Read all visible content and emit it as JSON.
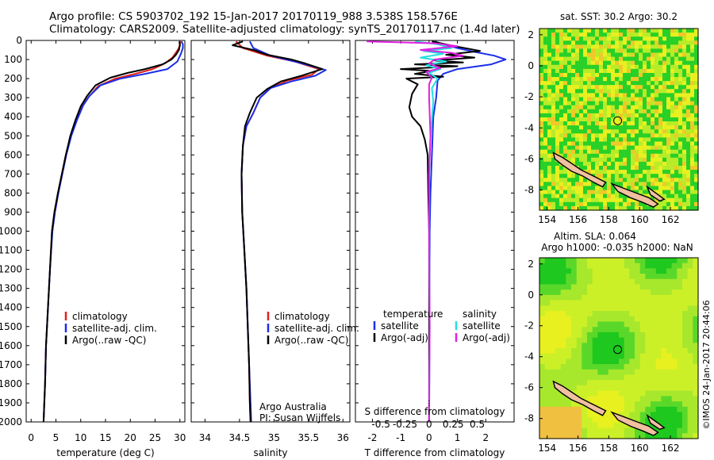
{
  "header": {
    "title_line1": "Argo profile: CS 5903702_192 15-Jan-2017 20170119_988 3.538S 158.576E",
    "title_line2": "Climatology: CARS2009. Satellite-adjusted climatology: synTS_20170117.nc (1.4d later)"
  },
  "colors": {
    "climatology": "#e0201a",
    "satellite": "#1a2ee8",
    "argo": "#000000",
    "satellite_diff": "#22e0e0",
    "argo_sal_diff": "#e020e0",
    "map_green": "#2ed82e",
    "map_yellow": "#e8f020",
    "land": "#f0c0a0"
  },
  "chart_data": [
    {
      "id": "temperature_panel",
      "type": "line",
      "xlabel": "temperature (deg C)",
      "ylabel": "",
      "xlim": [
        -1,
        31
      ],
      "ylim": [
        2000,
        0
      ],
      "xticks": [
        0,
        5,
        10,
        15,
        20,
        25,
        30
      ],
      "yticks": [
        0,
        100,
        200,
        300,
        400,
        500,
        600,
        700,
        800,
        900,
        1000,
        1100,
        1200,
        1300,
        1400,
        1500,
        1600,
        1700,
        1800,
        1900,
        2000
      ],
      "legend": [
        "climatology",
        "satellite-adj. clim.",
        "Argo(..raw -QC)"
      ],
      "legend_position": "lower-left",
      "series": [
        {
          "name": "climatology",
          "color_key": "climatology",
          "points": [
            [
              30.1,
              5
            ],
            [
              30.0,
              20
            ],
            [
              29.8,
              40
            ],
            [
              29.3,
              60
            ],
            [
              28.5,
              90
            ],
            [
              27,
              120
            ],
            [
              24.5,
              150
            ],
            [
              21,
              175
            ],
            [
              17,
              200
            ],
            [
              13.5,
              240
            ],
            [
              11.5,
              300
            ],
            [
              10.2,
              350
            ],
            [
              9.0,
              420
            ],
            [
              8.0,
              500
            ],
            [
              7.0,
              600
            ],
            [
              6.2,
              700
            ],
            [
              5.4,
              800
            ],
            [
              4.7,
              900
            ],
            [
              4.2,
              1000
            ],
            [
              3.8,
              1200
            ],
            [
              3.4,
              1400
            ],
            [
              3.0,
              1600
            ],
            [
              2.8,
              1800
            ],
            [
              2.5,
              2000
            ]
          ]
        },
        {
          "name": "satellite-adj. clim.",
          "color_key": "satellite",
          "points": [
            [
              30.3,
              5
            ],
            [
              30.6,
              20
            ],
            [
              30.6,
              40
            ],
            [
              30.2,
              70
            ],
            [
              29.5,
              110
            ],
            [
              27.5,
              150
            ],
            [
              23,
              175
            ],
            [
              18,
              200
            ],
            [
              14,
              235
            ],
            [
              11.8,
              290
            ],
            [
              10.5,
              340
            ],
            [
              9.2,
              420
            ],
            [
              8.1,
              500
            ],
            [
              7.1,
              600
            ],
            [
              6.3,
              700
            ],
            [
              5.5,
              800
            ],
            [
              4.8,
              900
            ],
            [
              4.3,
              1000
            ],
            [
              3.8,
              1200
            ],
            [
              3.4,
              1400
            ],
            [
              3.0,
              1600
            ],
            [
              2.8,
              1800
            ],
            [
              2.5,
              2000
            ]
          ]
        },
        {
          "name": "Argo(..raw -QC)",
          "color_key": "argo",
          "points": [
            [
              29.9,
              5
            ],
            [
              30.0,
              25
            ],
            [
              29.8,
              50
            ],
            [
              29.2,
              75
            ],
            [
              28.3,
              100
            ],
            [
              26.5,
              125
            ],
            [
              23,
              150
            ],
            [
              19.5,
              170
            ],
            [
              16,
              195
            ],
            [
              13,
              235
            ],
            [
              11.3,
              290
            ],
            [
              10.0,
              345
            ],
            [
              8.9,
              420
            ],
            [
              7.9,
              500
            ],
            [
              7.0,
              600
            ],
            [
              6.2,
              700
            ],
            [
              5.4,
              800
            ],
            [
              4.7,
              900
            ],
            [
              4.2,
              1000
            ],
            [
              3.8,
              1200
            ],
            [
              3.4,
              1400
            ],
            [
              3.0,
              1600
            ],
            [
              2.8,
              1800
            ],
            [
              2.5,
              2000
            ]
          ]
        }
      ]
    },
    {
      "id": "salinity_panel",
      "type": "line",
      "xlabel": "salinity",
      "xlim": [
        33.8,
        36.1
      ],
      "ylim": [
        2000,
        0
      ],
      "xticks": [
        34,
        34.5,
        35,
        35.5,
        36
      ],
      "legend": [
        "climatology",
        "satellite-adj. clim.",
        "Argo(..raw -QC)"
      ],
      "legend_position": "lower-right",
      "annotation_lines": [
        "Argo Australia",
        "PI: Susan Wijffels"
      ],
      "series": [
        {
          "name": "climatology",
          "color_key": "climatology",
          "points": [
            [
              34.45,
              5
            ],
            [
              34.55,
              40
            ],
            [
              34.9,
              80
            ],
            [
              35.3,
              110
            ],
            [
              35.65,
              150
            ],
            [
              35.55,
              180
            ],
            [
              35.2,
              210
            ],
            [
              34.95,
              250
            ],
            [
              34.8,
              300
            ],
            [
              34.7,
              380
            ],
            [
              34.6,
              450
            ],
            [
              34.55,
              550
            ],
            [
              34.53,
              700
            ],
            [
              34.54,
              900
            ],
            [
              34.57,
              1100
            ],
            [
              34.6,
              1300
            ],
            [
              34.62,
              1500
            ],
            [
              34.64,
              1700
            ],
            [
              34.65,
              1900
            ],
            [
              34.66,
              2000
            ]
          ]
        },
        {
          "name": "satellite-adj. clim.",
          "color_key": "satellite",
          "points": [
            [
              34.65,
              5
            ],
            [
              34.7,
              40
            ],
            [
              34.95,
              80
            ],
            [
              35.35,
              115
            ],
            [
              35.75,
              155
            ],
            [
              35.6,
              185
            ],
            [
              35.25,
              215
            ],
            [
              34.95,
              250
            ],
            [
              34.8,
              300
            ],
            [
              34.7,
              380
            ],
            [
              34.6,
              450
            ],
            [
              34.55,
              550
            ],
            [
              34.53,
              700
            ],
            [
              34.54,
              900
            ],
            [
              34.57,
              1100
            ],
            [
              34.6,
              1300
            ],
            [
              34.62,
              1500
            ],
            [
              34.64,
              1700
            ],
            [
              34.66,
              1900
            ],
            [
              34.67,
              2000
            ]
          ]
        },
        {
          "name": "Argo(..raw -QC)",
          "color_key": "argo",
          "points": [
            [
              34.55,
              5
            ],
            [
              34.4,
              25
            ],
            [
              34.7,
              50
            ],
            [
              34.9,
              75
            ],
            [
              35.25,
              100
            ],
            [
              35.45,
              120
            ],
            [
              35.7,
              150
            ],
            [
              35.4,
              185
            ],
            [
              35.1,
              215
            ],
            [
              34.9,
              255
            ],
            [
              34.75,
              300
            ],
            [
              34.65,
              380
            ],
            [
              34.58,
              450
            ],
            [
              34.55,
              550
            ],
            [
              34.53,
              700
            ],
            [
              34.54,
              900
            ],
            [
              34.57,
              1100
            ],
            [
              34.6,
              1300
            ],
            [
              34.62,
              1500
            ],
            [
              34.64,
              1700
            ],
            [
              34.65,
              1900
            ],
            [
              34.66,
              2000
            ]
          ]
        }
      ]
    },
    {
      "id": "difference_panel",
      "type": "line",
      "xlabel": "T difference from climatology",
      "xlabel_top": "S difference from climatology",
      "xlim": [
        -2.6,
        3.0
      ],
      "ylim": [
        2000,
        0
      ],
      "xticks": [
        -2,
        -1,
        0,
        1,
        2
      ],
      "xticks_top": [
        {
          "label": "-0.5",
          "pos": -1.7
        },
        {
          "label": "-0.25",
          "pos": -0.85
        },
        {
          "label": "0",
          "pos": 0
        },
        {
          "label": "0.25",
          "pos": 0.85
        },
        {
          "label": "0.5",
          "pos": 1.7
        }
      ],
      "legend_left_title": "temperature",
      "legend_left": [
        "satellite",
        "Argo(-adj)"
      ],
      "legend_right_title": "salinity",
      "legend_right": [
        "satellite",
        "Argo(-adj)"
      ],
      "series": [
        {
          "name": "temperature satellite",
          "color_key": "satellite",
          "points": [
            [
              0.2,
              5
            ],
            [
              0.5,
              20
            ],
            [
              1.0,
              40
            ],
            [
              1.6,
              60
            ],
            [
              2.3,
              80
            ],
            [
              2.7,
              100
            ],
            [
              2.2,
              125
            ],
            [
              1.0,
              150
            ],
            [
              0.5,
              175
            ],
            [
              0.3,
              210
            ],
            [
              0.25,
              300
            ],
            [
              0.15,
              400
            ],
            [
              0.1,
              600
            ],
            [
              0.05,
              800
            ],
            [
              0.02,
              1000
            ],
            [
              0.01,
              1500
            ],
            [
              0,
              2000
            ]
          ]
        },
        {
          "name": "temperature Argo(-adj)",
          "color_key": "argo",
          "points": [
            [
              0.1,
              5
            ],
            [
              0.9,
              30
            ],
            [
              1.8,
              55
            ],
            [
              0.6,
              75
            ],
            [
              1.6,
              90
            ],
            [
              0.2,
              105
            ],
            [
              1.2,
              115
            ],
            [
              -0.5,
              125
            ],
            [
              1.0,
              135
            ],
            [
              -1.0,
              150
            ],
            [
              0.1,
              160
            ],
            [
              -0.5,
              175
            ],
            [
              0.5,
              190
            ],
            [
              -0.8,
              200
            ],
            [
              -0.4,
              230
            ],
            [
              -0.6,
              280
            ],
            [
              -0.7,
              350
            ],
            [
              -0.6,
              400
            ],
            [
              -0.3,
              450
            ],
            [
              -0.15,
              520
            ],
            [
              -0.05,
              600
            ],
            [
              -0.03,
              800
            ],
            [
              0,
              1000
            ],
            [
              0,
              2000
            ]
          ]
        },
        {
          "name": "salinity satellite",
          "color_key": "satellite_diff",
          "points": [
            [
              -0.5,
              5
            ],
            [
              0.3,
              20
            ],
            [
              0.8,
              40
            ],
            [
              -0.2,
              55
            ],
            [
              0.5,
              70
            ],
            [
              -0.3,
              90
            ],
            [
              0.6,
              110
            ],
            [
              -0.1,
              130
            ],
            [
              0.4,
              150
            ],
            [
              0.0,
              170
            ],
            [
              0.3,
              200
            ],
            [
              0.1,
              250
            ],
            [
              0.15,
              320
            ],
            [
              0.05,
              500
            ],
            [
              0.0,
              700
            ],
            [
              0.0,
              1000
            ],
            [
              0.02,
              1500
            ],
            [
              0.0,
              2000
            ]
          ]
        },
        {
          "name": "salinity Argo(-adj)",
          "color_key": "argo_sal_diff",
          "points": [
            [
              -2.2,
              5
            ],
            [
              0.2,
              15
            ],
            [
              1.0,
              30
            ],
            [
              -0.3,
              50
            ],
            [
              0.8,
              65
            ],
            [
              1.2,
              80
            ],
            [
              0.2,
              100
            ],
            [
              0.0,
              120
            ],
            [
              0.4,
              145
            ],
            [
              -0.1,
              165
            ],
            [
              0.1,
              195
            ],
            [
              0.0,
              230
            ],
            [
              0.0,
              300
            ],
            [
              0.05,
              500
            ],
            [
              0.0,
              700
            ],
            [
              0.0,
              1000
            ],
            [
              0.02,
              1500
            ],
            [
              0.0,
              2000
            ]
          ]
        }
      ]
    },
    {
      "id": "sst_map",
      "type": "heatmap",
      "title": "sat. SST: 30.2  Argo: 30.2",
      "xlim": [
        153.5,
        163.8
      ],
      "ylim": [
        -9.3,
        2.4
      ],
      "xticks": [
        154,
        156,
        158,
        160,
        162
      ],
      "yticks": [
        2,
        0,
        -2,
        -4,
        -6,
        -8
      ],
      "argo_position": [
        158.576,
        -3.538
      ]
    },
    {
      "id": "sla_map",
      "type": "heatmap",
      "title_line1": "Altim. SLA: 0.064",
      "title_line2": "Argo h1000: -0.035 h2000: NaN",
      "xlim": [
        153.5,
        163.8
      ],
      "ylim": [
        -9.3,
        2.4
      ],
      "xticks": [
        154,
        156,
        158,
        160,
        162
      ],
      "yticks": [
        2,
        0,
        -2,
        -4,
        -6,
        -8
      ],
      "argo_position": [
        158.576,
        -3.538
      ]
    }
  ],
  "credit": "©IMOS 24-Jan-2017 20:44:06"
}
